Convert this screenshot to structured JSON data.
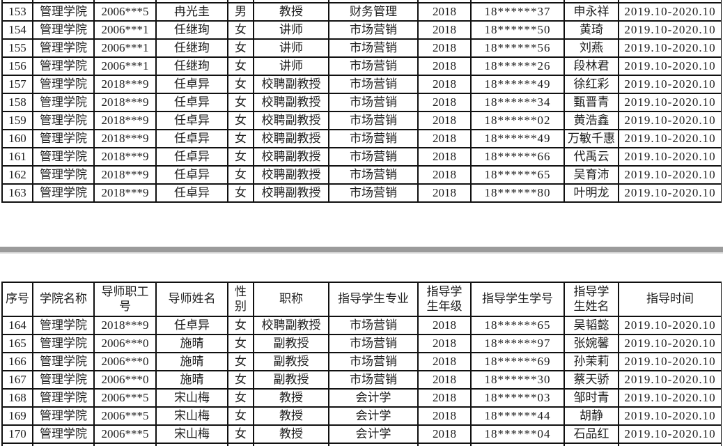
{
  "colors": {
    "page_background": "#ffffff",
    "table_border": "#101010",
    "text": "#1d1d1d",
    "page_break_bar": "#9b9b9b"
  },
  "table": {
    "headers": [
      "序号",
      "学院名称",
      "导师职工\n号",
      "导师姓名",
      "性\n别",
      "职称",
      "指导学生专业",
      "指导学\n生年级",
      "指导学生学号",
      "指导学\n生姓名",
      "指导时间"
    ],
    "top_rows": [
      [
        "153",
        "管理学院",
        "2006***5",
        "冉光圭",
        "男",
        "教授",
        "财务管理",
        "2018",
        "18******37",
        "申永祥",
        "2019.10-2020.10"
      ],
      [
        "154",
        "管理学院",
        "2006***1",
        "任继珣",
        "女",
        "讲师",
        "市场营销",
        "2018",
        "18******50",
        "黄琦",
        "2019.10-2020.10"
      ],
      [
        "155",
        "管理学院",
        "2006***1",
        "任继珣",
        "女",
        "讲师",
        "市场营销",
        "2018",
        "18******56",
        "刘燕",
        "2019.10-2020.10"
      ],
      [
        "156",
        "管理学院",
        "2006***1",
        "任继珣",
        "女",
        "讲师",
        "市场营销",
        "2018",
        "18******26",
        "段林君",
        "2019.10-2020.10"
      ],
      [
        "157",
        "管理学院",
        "2018***9",
        "任卓异",
        "女",
        "校聘副教授",
        "市场营销",
        "2018",
        "18******49",
        "徐红彩",
        "2019.10-2020.10"
      ],
      [
        "158",
        "管理学院",
        "2018***9",
        "任卓异",
        "女",
        "校聘副教授",
        "市场营销",
        "2018",
        "18******34",
        "甄晋青",
        "2019.10-2020.10"
      ],
      [
        "159",
        "管理学院",
        "2018***9",
        "任卓异",
        "女",
        "校聘副教授",
        "市场营销",
        "2018",
        "18******02",
        "黄浩鑫",
        "2019.10-2020.10"
      ],
      [
        "160",
        "管理学院",
        "2018***9",
        "任卓异",
        "女",
        "校聘副教授",
        "市场营销",
        "2018",
        "18******49",
        "万敏千惠",
        "2019.10-2020.10"
      ],
      [
        "161",
        "管理学院",
        "2018***9",
        "任卓异",
        "女",
        "校聘副教授",
        "市场营销",
        "2018",
        "18******66",
        "代禹云",
        "2019.10-2020.10"
      ],
      [
        "162",
        "管理学院",
        "2018***9",
        "任卓异",
        "女",
        "校聘副教授",
        "市场营销",
        "2018",
        "18******65",
        "吴育沛",
        "2019.10-2020.10"
      ],
      [
        "163",
        "管理学院",
        "2018***9",
        "任卓异",
        "女",
        "校聘副教授",
        "市场营销",
        "2018",
        "18******80",
        "叶明龙",
        "2019.10-2020.10"
      ]
    ],
    "bottom_rows": [
      [
        "164",
        "管理学院",
        "2018***9",
        "任卓异",
        "女",
        "校聘副教授",
        "市场营销",
        "2018",
        "18******65",
        "吴韬懿",
        "2019.10-2020.10"
      ],
      [
        "165",
        "管理学院",
        "2006***0",
        "施晴",
        "女",
        "副教授",
        "市场营销",
        "2018",
        "18******97",
        "张婉馨",
        "2019.10-2020.10"
      ],
      [
        "166",
        "管理学院",
        "2006***0",
        "施晴",
        "女",
        "副教授",
        "市场营销",
        "2018",
        "18******69",
        "孙茉莉",
        "2019.10-2020.10"
      ],
      [
        "167",
        "管理学院",
        "2006***0",
        "施晴",
        "女",
        "副教授",
        "市场营销",
        "2018",
        "18******30",
        "蔡天骄",
        "2019.10-2020.10"
      ],
      [
        "168",
        "管理学院",
        "2006***5",
        "宋山梅",
        "女",
        "教授",
        "会计学",
        "2018",
        "18******03",
        "邹时青",
        "2019.10-2020.10"
      ],
      [
        "169",
        "管理学院",
        "2006***5",
        "宋山梅",
        "女",
        "教授",
        "会计学",
        "2018",
        "18******44",
        "胡静",
        "2019.10-2020.10"
      ],
      [
        "170",
        "管理学院",
        "2006***5",
        "宋山梅",
        "女",
        "教授",
        "会计学",
        "2018",
        "18******04",
        "石品红",
        "2019.10-2020.10"
      ]
    ]
  }
}
